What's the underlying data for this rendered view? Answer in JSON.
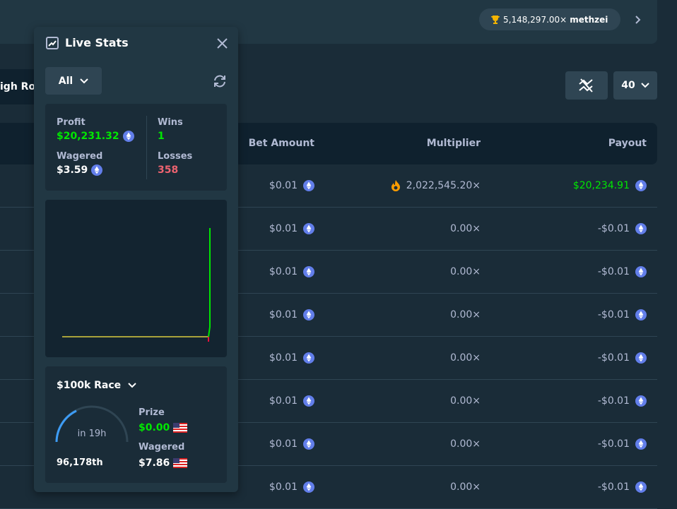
{
  "header": {
    "multiplier": "5,148,297.00×",
    "username": "methzei"
  },
  "tab": "igh Rol",
  "page_size": "40",
  "table": {
    "columns": [
      "Bet Amount",
      "Multiplier",
      "Payout"
    ],
    "rows": [
      {
        "bet": "$0.01",
        "multiplier": "2,022,545.20×",
        "payout": "$20,234.91",
        "win": true,
        "color": "#00e701"
      },
      {
        "bet": "$0.01",
        "multiplier": "0.00×",
        "payout": "-$0.01",
        "win": false,
        "color": "#b1bad3"
      },
      {
        "bet": "$0.01",
        "multiplier": "0.00×",
        "payout": "-$0.01",
        "win": false,
        "color": "#b1bad3"
      },
      {
        "bet": "$0.01",
        "multiplier": "0.00×",
        "payout": "-$0.01",
        "win": false,
        "color": "#b1bad3"
      },
      {
        "bet": "$0.01",
        "multiplier": "0.00×",
        "payout": "-$0.01",
        "win": false,
        "color": "#b1bad3"
      },
      {
        "bet": "$0.01",
        "multiplier": "0.00×",
        "payout": "-$0.01",
        "win": false,
        "color": "#b1bad3"
      },
      {
        "bet": "$0.01",
        "multiplier": "0.00×",
        "payout": "-$0.01",
        "win": false,
        "color": "#b1bad3"
      },
      {
        "bet": "$0.01",
        "multiplier": "0.00×",
        "payout": "-$0.01",
        "win": false,
        "color": "#b1bad3"
      }
    ]
  },
  "live_stats": {
    "title": "Live Stats",
    "filter": "All",
    "profit_label": "Profit",
    "profit": "$20,231.32",
    "wagered_label": "Wagered",
    "wagered": "$3.59",
    "wins_label": "Wins",
    "wins": "1",
    "losses_label": "Losses",
    "losses": "358"
  },
  "race": {
    "title": "$100k Race",
    "time": "in 19h",
    "rank": "96,178th",
    "prize_label": "Prize",
    "prize": "$0.00",
    "wagered_label": "Wagered",
    "wagered": "$7.86"
  }
}
